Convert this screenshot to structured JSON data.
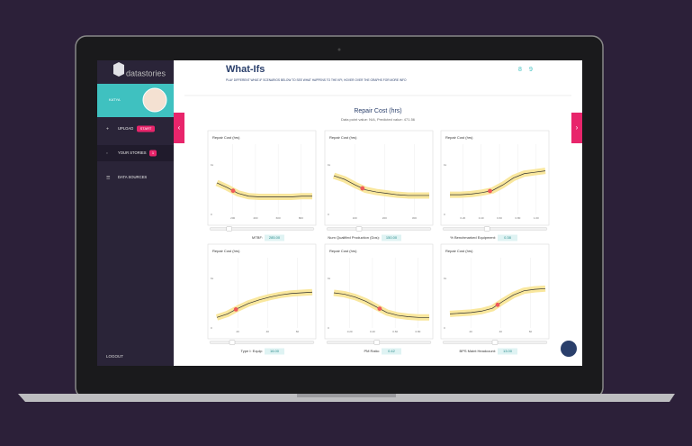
{
  "brand": "datastories",
  "user": "KATYA",
  "nav": [
    {
      "label": "UPLOAD",
      "badge": "START"
    },
    {
      "label": "YOUR STORIES",
      "badge": "1"
    },
    {
      "label": "DATA SOURCES"
    }
  ],
  "logout": "LOGOUT",
  "header": {
    "title": "What-Ifs",
    "subtitle": "PLAY DIFFERENT WHAT-IF SCENARIOS BELOW TO SEE WHAT HAPPENS TO THE KPI, HOVER OVER THE GRAPHS FOR MORE INFO",
    "pages": [
      "8",
      "9"
    ]
  },
  "kpi": {
    "title": "Repair Cost (hrs)",
    "subtitle": "Data point value: N/A, Predicted value: 471.56"
  },
  "panels": [
    {
      "title": "Repair Cost (hrs)",
      "label": "MTBF:",
      "value": "285.00",
      "x_ticks": [
        "200",
        "400",
        "600",
        "800"
      ],
      "y_ticks": [
        "1k",
        "0"
      ]
    },
    {
      "title": "Repair Cost (hrs)",
      "label": "Num Qualified Production (Dos):",
      "value": "150.00",
      "x_ticks": [
        "100",
        "200",
        "300"
      ],
      "y_ticks": [
        "1k",
        "0"
      ]
    },
    {
      "title": "Repair Cost (hrs)",
      "label": "% Benchmarked Equipment:",
      "value": "0.38",
      "x_ticks": [
        "0.20",
        "0.40",
        "0.60",
        "0.80",
        "1.00"
      ],
      "y_ticks": [
        "1k",
        "0"
      ]
    },
    {
      "title": "Repair Cost (hrs)",
      "label": "Type I: Equip:",
      "value": "16.00",
      "x_ticks": [
        "20",
        "40",
        "60"
      ],
      "y_ticks": [
        "1k",
        "0"
      ]
    },
    {
      "title": "Repair Cost (hrs)",
      "label": "PM Ratio:",
      "value": "0.42",
      "x_ticks": [
        "0.20",
        "0.40",
        "0.60",
        "0.80"
      ],
      "y_ticks": [
        "1k",
        "0"
      ]
    },
    {
      "title": "Repair Cost (hrs)",
      "label": "BPS Maint Headcount:",
      "value": "13.00",
      "x_ticks": [
        "20",
        "40",
        "60"
      ],
      "y_ticks": [
        "1k",
        "0"
      ]
    }
  ]
}
